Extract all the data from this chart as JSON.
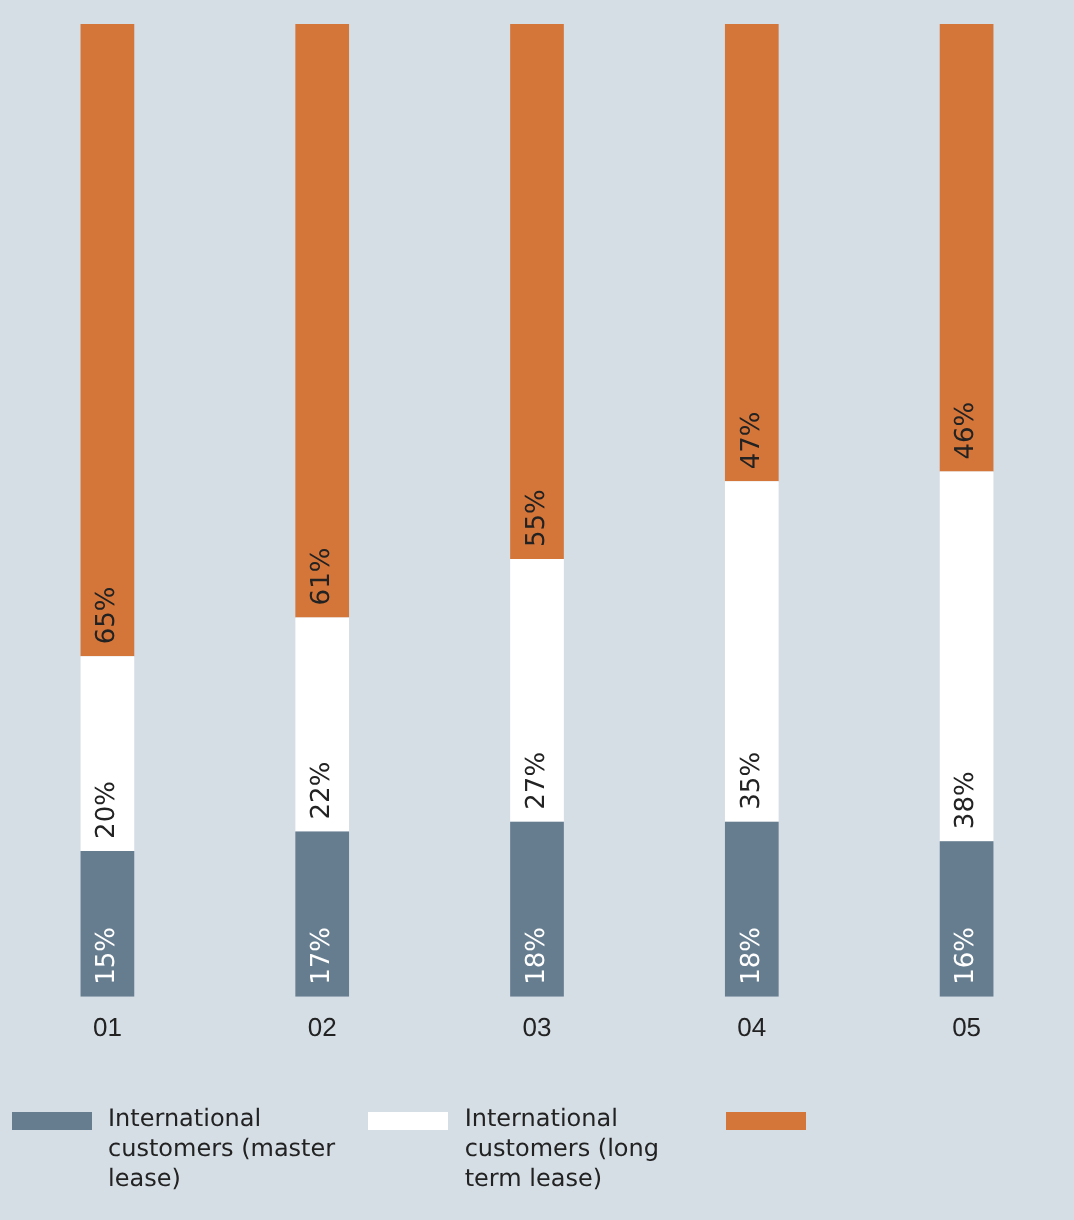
{
  "chart_data": {
    "type": "bar",
    "stacked": true,
    "data_labels": true,
    "legend": "bottom",
    "grid": false,
    "categories": [
      "01",
      "02",
      "03",
      "04",
      "05"
    ],
    "series": [
      {
        "name": "International customers (master lease)",
        "color": "#667d8f",
        "values": [
          15,
          17,
          18,
          18,
          16
        ],
        "value_labels": [
          "15%",
          "17%",
          "18%",
          "18%",
          "16%"
        ]
      },
      {
        "name": "International customers (long term lease)",
        "color": "#ffffff",
        "values": [
          20,
          22,
          27,
          35,
          38
        ],
        "value_labels": [
          "20%",
          "22%",
          "27%",
          "35%",
          "38%"
        ]
      },
      {
        "color": "#d4763a",
        "values": [
          65,
          61,
          55,
          47,
          46
        ],
        "value_labels": [
          "65%",
          "61%",
          "55%",
          "47%",
          "46%"
        ]
      }
    ]
  }
}
